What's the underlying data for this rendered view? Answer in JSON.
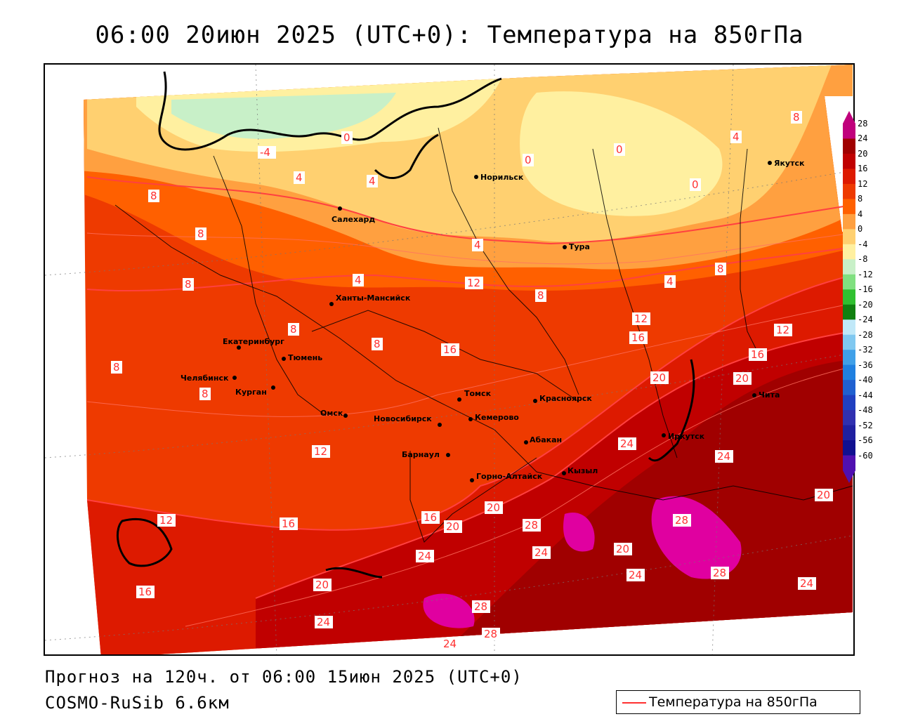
{
  "header": {
    "title": "06:00 20июн 2025 (UTC+0): Температура на 850гПа"
  },
  "footer": {
    "forecast": "Прогноз на 120ч. от 06:00 15июн 2025 (UTC+0)",
    "model": "COSMO-RuSib 6.6км"
  },
  "legend": {
    "label": "Температура на 850гПа",
    "line_color": "#ff3030"
  },
  "colorbar": {
    "ticks": [
      "28",
      "24",
      "20",
      "16",
      "12",
      "8",
      "4",
      "0",
      "-4",
      "-8",
      "-12",
      "-16",
      "-20",
      "-24",
      "-28",
      "-32",
      "-36",
      "-40",
      "-44",
      "-48",
      "-52",
      "-56",
      "-60"
    ],
    "colors": [
      "#c0007c",
      "#a00000",
      "#c00000",
      "#dd1a00",
      "#ee3a00",
      "#ff6000",
      "#ffa040",
      "#ffd070",
      "#fff0a0",
      "#c8f0c8",
      "#80e080",
      "#30c030",
      "#108010",
      "#c0e8f8",
      "#80c8f0",
      "#40a0e8",
      "#2080e0",
      "#2060d0",
      "#2040c0",
      "#3030b0",
      "#2020a0",
      "#101090",
      "#5010b0"
    ]
  },
  "cities": [
    {
      "name": "Норильск"
    },
    {
      "name": "Якутск"
    },
    {
      "name": "Салехард"
    },
    {
      "name": "Тура"
    },
    {
      "name": "Ханты-Мансийск"
    },
    {
      "name": "Екатеринбург"
    },
    {
      "name": "Тюмень"
    },
    {
      "name": "Челябинск"
    },
    {
      "name": "Курган"
    },
    {
      "name": "Омск"
    },
    {
      "name": "Новосибирск"
    },
    {
      "name": "Томск"
    },
    {
      "name": "Кемерово"
    },
    {
      "name": "Красноярск"
    },
    {
      "name": "Барнаул"
    },
    {
      "name": "Абакан"
    },
    {
      "name": "Горно-Алтайск"
    },
    {
      "name": "Кызыл"
    },
    {
      "name": "Иркутск"
    },
    {
      "name": "Чита"
    }
  ],
  "isotherm_labels": [
    "-4",
    "0",
    "4",
    "8",
    "12",
    "16",
    "20",
    "24",
    "28"
  ],
  "map_colors": {
    "frame": "#000000",
    "isoline": "#ff4040",
    "coast": "#000000"
  }
}
